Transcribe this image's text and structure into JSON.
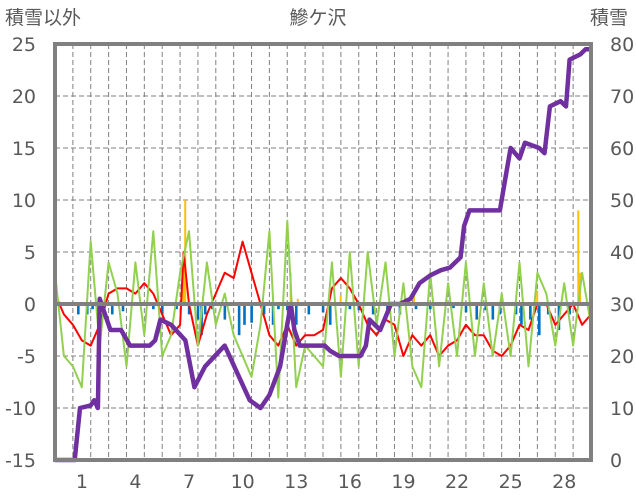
{
  "chart_data": {
    "type": "line",
    "title": "鰺ケ沢",
    "ylabel_left": "積雪以外",
    "ylabel_right": "積雪",
    "ylim_left": [
      -15,
      25
    ],
    "ylim_right": [
      0,
      80
    ],
    "yticks_left": [
      "25",
      "20",
      "15",
      "10",
      "5",
      "0",
      "-5",
      "-10",
      "-15"
    ],
    "yticks_right": [
      "80",
      "70",
      "60",
      "50",
      "40",
      "30",
      "20",
      "10",
      "0"
    ],
    "xlim_days": [
      0,
      30
    ],
    "xticks": [
      "1",
      "4",
      "7",
      "10",
      "13",
      "16",
      "19",
      "22",
      "25",
      "28"
    ],
    "grid": true,
    "colors": {
      "red": "#ff0000",
      "green": "#92d050",
      "purple": "#7030a0",
      "blue": "#0070c0",
      "orange": "#ffc000",
      "axis": "#808080"
    },
    "series": [
      {
        "name": "red",
        "axis": "left",
        "points": [
          [
            0,
            1
          ],
          [
            0.5,
            -1
          ],
          [
            1,
            -2
          ],
          [
            1.5,
            -3.5
          ],
          [
            2,
            -4
          ],
          [
            2.5,
            -2
          ],
          [
            3,
            1
          ],
          [
            3.5,
            1.5
          ],
          [
            4,
            1.5
          ],
          [
            4.5,
            1
          ],
          [
            5,
            2
          ],
          [
            5.5,
            1
          ],
          [
            6,
            -1
          ],
          [
            6.5,
            -3
          ],
          [
            7,
            -2
          ],
          [
            7.2,
            5
          ],
          [
            7.5,
            0
          ],
          [
            8,
            -4
          ],
          [
            8.5,
            -1
          ],
          [
            9,
            1
          ],
          [
            9.5,
            3
          ],
          [
            10,
            2.5
          ],
          [
            10.5,
            6
          ],
          [
            11,
            3
          ],
          [
            11.5,
            0
          ],
          [
            12,
            -3
          ],
          [
            12.5,
            -4
          ],
          [
            13,
            -2
          ],
          [
            13.5,
            -4
          ],
          [
            14,
            -3
          ],
          [
            14.5,
            -3
          ],
          [
            15,
            -2.5
          ],
          [
            15.5,
            1.5
          ],
          [
            16,
            2.5
          ],
          [
            16.5,
            1.5
          ],
          [
            17,
            0
          ],
          [
            17.5,
            -2
          ],
          [
            18,
            -3
          ],
          [
            18.5,
            -1.5
          ],
          [
            19,
            -2
          ],
          [
            19.5,
            -5
          ],
          [
            20,
            -3
          ],
          [
            20.5,
            -4
          ],
          [
            21,
            -3
          ],
          [
            21.5,
            -5
          ],
          [
            22,
            -4
          ],
          [
            22.5,
            -3.5
          ],
          [
            23,
            -2
          ],
          [
            23.5,
            -3
          ],
          [
            24,
            -3
          ],
          [
            24.5,
            -4.5
          ],
          [
            25,
            -5
          ],
          [
            25.5,
            -4
          ],
          [
            26,
            -2
          ],
          [
            26.5,
            -2.5
          ],
          [
            27,
            0
          ],
          [
            27.5,
            0
          ],
          [
            28,
            -2
          ],
          [
            28.5,
            -1
          ],
          [
            29,
            0
          ],
          [
            29.5,
            -2
          ],
          [
            30,
            -1
          ]
        ]
      },
      {
        "name": "green",
        "axis": "left",
        "points": [
          [
            0,
            3
          ],
          [
            0.5,
            -5
          ],
          [
            1,
            -6
          ],
          [
            1.5,
            -8
          ],
          [
            2,
            6
          ],
          [
            2.5,
            -4
          ],
          [
            3,
            4
          ],
          [
            3.5,
            1
          ],
          [
            4,
            -6
          ],
          [
            4.5,
            4
          ],
          [
            5,
            -3
          ],
          [
            5.5,
            7
          ],
          [
            6,
            -5
          ],
          [
            6.5,
            -3
          ],
          [
            7,
            3
          ],
          [
            7.5,
            7
          ],
          [
            8,
            -4
          ],
          [
            8.5,
            4
          ],
          [
            9,
            -2
          ],
          [
            9.5,
            1
          ],
          [
            10,
            -3
          ],
          [
            10.5,
            -5
          ],
          [
            11,
            -7
          ],
          [
            11.5,
            -2
          ],
          [
            12,
            7
          ],
          [
            12.5,
            -9
          ],
          [
            13,
            8
          ],
          [
            13.5,
            -8
          ],
          [
            14,
            -4
          ],
          [
            14.5,
            -5
          ],
          [
            15,
            -6
          ],
          [
            15.5,
            4
          ],
          [
            16,
            -7
          ],
          [
            16.5,
            5
          ],
          [
            17,
            -6
          ],
          [
            17.5,
            5
          ],
          [
            18,
            -2
          ],
          [
            18.5,
            4
          ],
          [
            19,
            -5
          ],
          [
            19.5,
            2
          ],
          [
            20,
            -6
          ],
          [
            20.5,
            -8
          ],
          [
            21,
            3
          ],
          [
            21.5,
            -6
          ],
          [
            22,
            2
          ],
          [
            22.5,
            -5
          ],
          [
            23,
            4
          ],
          [
            23.5,
            -5
          ],
          [
            24,
            2
          ],
          [
            24.5,
            -5
          ],
          [
            25,
            1
          ],
          [
            25.5,
            -5
          ],
          [
            26,
            4
          ],
          [
            26.5,
            -6
          ],
          [
            27,
            3
          ],
          [
            27.5,
            1
          ],
          [
            28,
            -4
          ],
          [
            28.5,
            2
          ],
          [
            29,
            -4
          ],
          [
            29.5,
            3
          ],
          [
            30,
            -2
          ]
        ]
      },
      {
        "name": "snow-depth",
        "axis": "right",
        "points": [
          [
            0,
            0
          ],
          [
            1.1,
            0
          ],
          [
            1.4,
            10
          ],
          [
            2,
            10.5
          ],
          [
            2.2,
            11.5
          ],
          [
            2.4,
            10
          ],
          [
            2.5,
            31
          ],
          [
            3.1,
            25
          ],
          [
            3.7,
            25
          ],
          [
            4.2,
            22
          ],
          [
            5.3,
            22
          ],
          [
            5.6,
            23
          ],
          [
            5.9,
            27
          ],
          [
            6.5,
            26
          ],
          [
            7.3,
            23
          ],
          [
            7.8,
            14
          ],
          [
            8.1,
            16
          ],
          [
            8.4,
            18
          ],
          [
            9.5,
            22
          ],
          [
            10.9,
            11.5
          ],
          [
            11.5,
            10
          ],
          [
            12,
            12.5
          ],
          [
            12.6,
            18
          ],
          [
            13.2,
            30
          ],
          [
            13.4,
            25
          ],
          [
            13.7,
            22
          ],
          [
            15.1,
            22
          ],
          [
            15.4,
            21
          ],
          [
            15.9,
            20
          ],
          [
            17.1,
            20
          ],
          [
            17.4,
            22
          ],
          [
            17.6,
            27
          ],
          [
            18.2,
            25
          ],
          [
            18.8,
            30
          ],
          [
            19.3,
            30
          ],
          [
            19.9,
            31
          ],
          [
            20.4,
            34
          ],
          [
            21,
            35.5
          ],
          [
            21.6,
            36.5
          ],
          [
            22.1,
            37
          ],
          [
            22.7,
            39
          ],
          [
            22.9,
            45
          ],
          [
            23.2,
            48
          ],
          [
            23.8,
            48
          ],
          [
            24.3,
            48
          ],
          [
            24.9,
            48
          ],
          [
            25.2,
            54
          ],
          [
            25.5,
            60
          ],
          [
            26,
            58
          ],
          [
            26.3,
            61
          ],
          [
            27.1,
            60
          ],
          [
            27.4,
            59
          ],
          [
            27.7,
            68
          ],
          [
            28.3,
            69
          ],
          [
            28.6,
            68
          ],
          [
            28.8,
            77
          ],
          [
            29.4,
            78
          ],
          [
            29.7,
            79
          ],
          [
            30,
            79
          ]
        ]
      }
    ],
    "bars": [
      {
        "name": "orange",
        "axis": "left",
        "points": [
          [
            7.2,
            5
          ],
          [
            7.3,
            10
          ],
          [
            13.2,
            3
          ],
          [
            13.6,
            0.5
          ],
          [
            16,
            0.8
          ],
          [
            20.1,
            1.2
          ],
          [
            27,
            1.3
          ],
          [
            29.3,
            9
          ],
          [
            29.4,
            3
          ]
        ]
      },
      {
        "name": "blue",
        "axis": "left",
        "points": [
          [
            1.3,
            -1
          ],
          [
            1.8,
            -1
          ],
          [
            2.1,
            -0.5
          ],
          [
            2.5,
            -1.5
          ],
          [
            3.2,
            -1
          ],
          [
            3.8,
            -0.7
          ],
          [
            5.5,
            -0.5
          ],
          [
            6,
            -1
          ],
          [
            6.8,
            -0.5
          ],
          [
            7.5,
            -1
          ],
          [
            8,
            -1.5
          ],
          [
            8.2,
            -3
          ],
          [
            8.4,
            -1
          ],
          [
            8.8,
            -0.5
          ],
          [
            9.5,
            -1.5
          ],
          [
            10.3,
            -3
          ],
          [
            10.6,
            -2
          ],
          [
            11,
            -1.8
          ],
          [
            11.7,
            -1
          ],
          [
            12.2,
            -2
          ],
          [
            12.5,
            -0.5
          ],
          [
            13,
            -0.6
          ],
          [
            13.5,
            -2
          ],
          [
            14.2,
            -1
          ],
          [
            15,
            -0.8
          ],
          [
            15.4,
            -2
          ],
          [
            16.5,
            -0.5
          ],
          [
            17,
            -0.6
          ],
          [
            17.8,
            -1
          ],
          [
            18.6,
            -0.5
          ],
          [
            19.3,
            -1
          ],
          [
            20.2,
            -0.5
          ],
          [
            21,
            -0.5
          ],
          [
            22.3,
            -0.4
          ],
          [
            23,
            -0.8
          ],
          [
            23.6,
            -1.5
          ],
          [
            24.1,
            -0.6
          ],
          [
            24.5,
            -1.5
          ],
          [
            24.9,
            -1
          ],
          [
            25.8,
            -1
          ],
          [
            26.1,
            -2
          ],
          [
            26.6,
            -1.5
          ],
          [
            27.1,
            -3
          ],
          [
            27.6,
            -1
          ],
          [
            28.2,
            -2.5
          ],
          [
            28.8,
            -1
          ]
        ]
      }
    ]
  }
}
